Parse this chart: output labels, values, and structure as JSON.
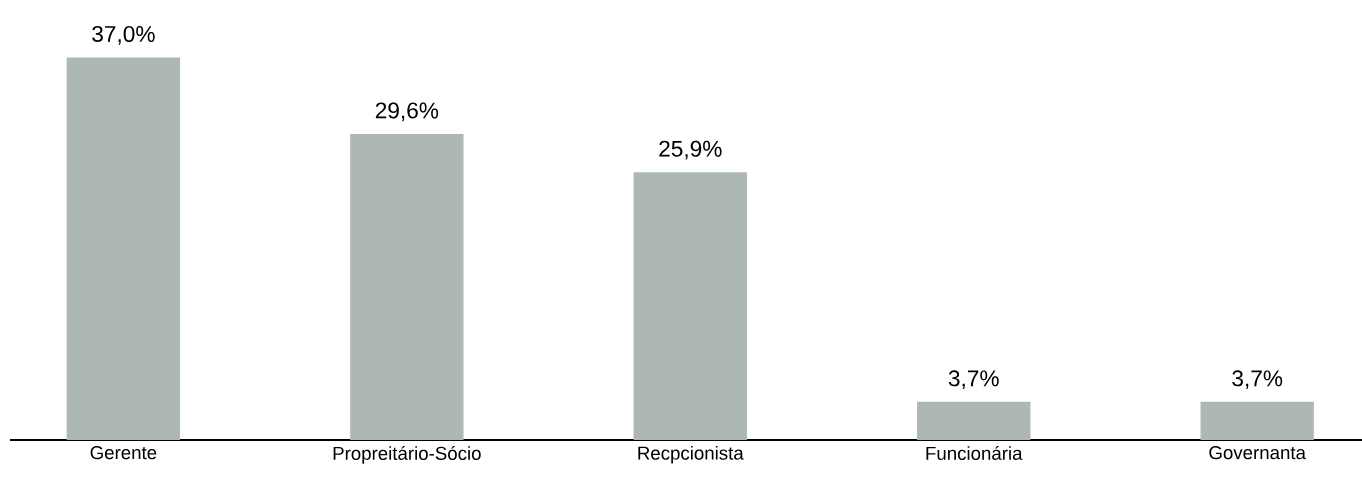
{
  "chart_data": {
    "type": "bar",
    "categories": [
      "Gerente",
      "Propreitário-Sócio",
      "Recpcionista",
      "Funcionária",
      "Governanta"
    ],
    "values": [
      37.0,
      29.6,
      25.9,
      3.7,
      3.7
    ],
    "value_labels": [
      "37,0%",
      "29,6%",
      "25,9%",
      "3,7%",
      "3,7%"
    ],
    "color": "#adb8b5"
  }
}
